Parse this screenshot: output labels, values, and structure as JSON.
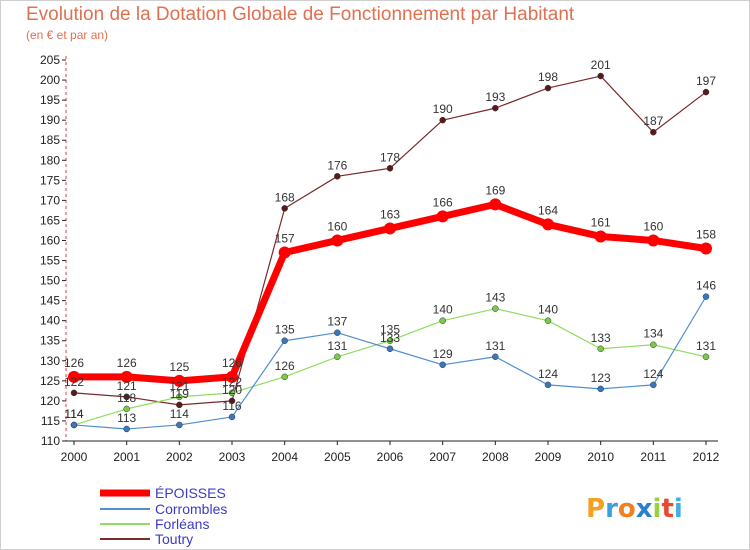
{
  "page": {
    "title": "Evolution de la Dotation Globale de Fonctionnement par Habitant",
    "subtitle": "(en € et par an)",
    "logo_text": "Proxiti"
  },
  "chart_data": {
    "type": "line",
    "title": "Evolution de la Dotation Globale de Fonctionnement par Habitant",
    "subtitle": "(en € et par an)",
    "xlabel": "",
    "ylabel": "",
    "categories": [
      "2000",
      "2001",
      "2002",
      "2003",
      "2004",
      "2005",
      "2006",
      "2007",
      "2008",
      "2009",
      "2010",
      "2011",
      "2012"
    ],
    "ylim": [
      110,
      205
    ],
    "yticks": [
      110,
      115,
      120,
      125,
      130,
      135,
      140,
      145,
      150,
      155,
      160,
      165,
      170,
      175,
      180,
      185,
      190,
      195,
      200,
      205
    ],
    "grid": false,
    "legend_position": "bottom-left",
    "series": [
      {
        "name": "ÉPOISSES",
        "color": "#ff0000",
        "values": [
          126,
          126,
          125,
          126,
          157,
          160,
          163,
          166,
          169,
          164,
          161,
          160,
          158
        ]
      },
      {
        "name": "Corrombles",
        "color": "#4f8fd0",
        "values": [
          114,
          113,
          114,
          116,
          135,
          137,
          133,
          129,
          131,
          124,
          123,
          124,
          146
        ]
      },
      {
        "name": "Forléans",
        "color": "#90dc60",
        "values": [
          114,
          118,
          121,
          122,
          126,
          131,
          135,
          140,
          143,
          140,
          133,
          134,
          131
        ]
      },
      {
        "name": "Toutry",
        "color": "#7a2a2a",
        "values": [
          122,
          121,
          119,
          120,
          168,
          176,
          178,
          190,
          193,
          198,
          201,
          187,
          197
        ]
      }
    ]
  }
}
